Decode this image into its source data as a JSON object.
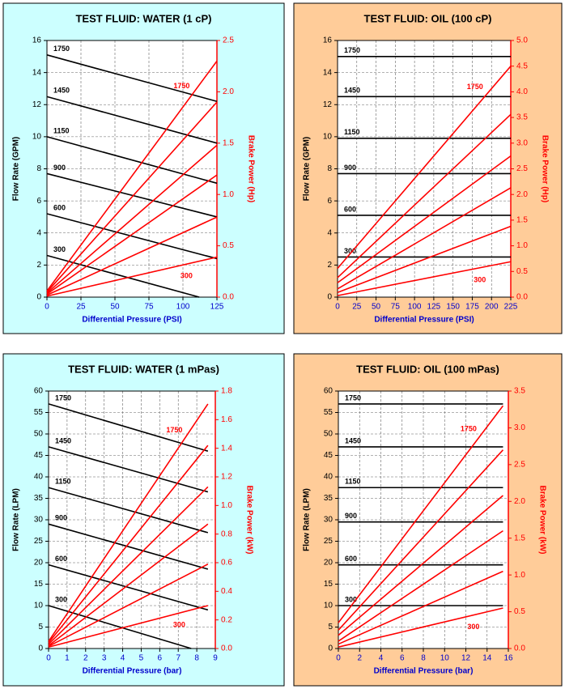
{
  "chart_data": [
    {
      "type": "line",
      "title": "TEST FLUID:  WATER (1 cP)",
      "background": "#ccffff",
      "xlabel": "Differential Pressure (PSI)",
      "ylabel": "Flow Rate (GPM)",
      "y2label": "Brake Power (Hp)",
      "xlim": [
        0,
        125
      ],
      "xticks": [
        0,
        25,
        50,
        75,
        100,
        125
      ],
      "ylim": [
        0,
        16
      ],
      "yticks": [
        0,
        2,
        4,
        6,
        8,
        10,
        12,
        14,
        16
      ],
      "y2lim": [
        0,
        2.5
      ],
      "y2ticks": [
        {
          "value": 0,
          "label": "0.0"
        },
        0.5,
        {
          "value": 1,
          "label": "1.0"
        },
        1.5,
        {
          "value": 2,
          "label": "2.0"
        },
        2.5
      ],
      "grid": true,
      "series": [
        {
          "name": "1750",
          "color": "#000000",
          "x": [
            0,
            125
          ],
          "values": [
            15.1,
            12.2
          ]
        },
        {
          "name": "1450",
          "color": "#000000",
          "x": [
            0,
            125
          ],
          "values": [
            12.5,
            9.6
          ]
        },
        {
          "name": "1150",
          "color": "#000000",
          "x": [
            0,
            125
          ],
          "values": [
            10.0,
            7.1
          ]
        },
        {
          "name": "900",
          "color": "#000000",
          "x": [
            0,
            125
          ],
          "values": [
            7.7,
            5.0
          ]
        },
        {
          "name": "600",
          "color": "#000000",
          "x": [
            0,
            125
          ],
          "values": [
            5.2,
            2.4
          ]
        },
        {
          "name": "300",
          "color": "#000000",
          "x": [
            0,
            112
          ],
          "values": [
            2.6,
            0
          ]
        },
        {
          "name": "1750",
          "color": "#ff0000",
          "axis": "y2",
          "x": [
            0,
            125
          ],
          "values": [
            0.06,
            2.3
          ]
        },
        {
          "color": "#ff0000",
          "axis": "y2",
          "x": [
            0,
            125
          ],
          "values": [
            0.05,
            1.9
          ]
        },
        {
          "color": "#ff0000",
          "axis": "y2",
          "x": [
            0,
            125
          ],
          "values": [
            0.04,
            1.48
          ]
        },
        {
          "color": "#ff0000",
          "axis": "y2",
          "x": [
            0,
            125
          ],
          "values": [
            0.03,
            1.19
          ]
        },
        {
          "color": "#ff0000",
          "axis": "y2",
          "x": [
            0,
            125
          ],
          "values": [
            0.02,
            0.78
          ]
        },
        {
          "name": "300",
          "color": "#ff0000",
          "axis": "y2",
          "x": [
            0,
            125
          ],
          "values": [
            0.01,
            0.39
          ]
        }
      ]
    },
    {
      "type": "line",
      "title": "TEST FLUID:  OIL (100 cP)",
      "background": "#ffcc99",
      "xlabel": "Differential Pressure (PSI)",
      "ylabel": "Flow Rate (GPM)",
      "y2label": "Brake Power (Hp)",
      "xlim": [
        0,
        225
      ],
      "xticks": [
        0,
        25,
        50,
        75,
        100,
        125,
        150,
        175,
        200,
        225
      ],
      "ylim": [
        0,
        16
      ],
      "yticks": [
        0,
        2,
        4,
        6,
        8,
        10,
        12,
        14,
        16
      ],
      "y2lim": [
        0,
        5
      ],
      "y2ticks": [
        {
          "value": 0,
          "label": "0.0"
        },
        0.5,
        {
          "value": 1,
          "label": "1.0"
        },
        1.5,
        {
          "value": 2,
          "label": "2.0"
        },
        2.5,
        {
          "value": 3,
          "label": "3.0"
        },
        3.5,
        {
          "value": 4,
          "label": "4.0"
        },
        4.5,
        {
          "value": 5,
          "label": "5.0"
        }
      ],
      "grid": true,
      "series": [
        {
          "name": "1750",
          "color": "#000000",
          "x": [
            0,
            225
          ],
          "values": [
            15.0,
            15.0
          ]
        },
        {
          "name": "1450",
          "color": "#000000",
          "x": [
            0,
            225
          ],
          "values": [
            12.5,
            12.5
          ]
        },
        {
          "name": "1150",
          "color": "#000000",
          "x": [
            0,
            225
          ],
          "values": [
            9.9,
            9.9
          ]
        },
        {
          "name": "900",
          "color": "#000000",
          "x": [
            0,
            225
          ],
          "values": [
            7.7,
            7.7
          ]
        },
        {
          "name": "600",
          "color": "#000000",
          "x": [
            0,
            225
          ],
          "values": [
            5.1,
            5.1
          ]
        },
        {
          "name": "300",
          "color": "#000000",
          "x": [
            0,
            225
          ],
          "values": [
            2.5,
            2.5
          ]
        },
        {
          "name": "1750",
          "color": "#ff0000",
          "axis": "y2",
          "x": [
            0,
            225
          ],
          "values": [
            0.56,
            4.5
          ]
        },
        {
          "color": "#ff0000",
          "axis": "y2",
          "x": [
            0,
            225
          ],
          "values": [
            0.38,
            3.56
          ]
        },
        {
          "color": "#ff0000",
          "axis": "y2",
          "x": [
            0,
            225
          ],
          "values": [
            0.28,
            2.75
          ]
        },
        {
          "color": "#ff0000",
          "axis": "y2",
          "x": [
            0,
            225
          ],
          "values": [
            0.16,
            2.13
          ]
        },
        {
          "color": "#ff0000",
          "axis": "y2",
          "x": [
            0,
            225
          ],
          "values": [
            0.09,
            1.38
          ]
        },
        {
          "name": "300",
          "color": "#ff0000",
          "axis": "y2",
          "x": [
            0,
            225
          ],
          "values": [
            0.03,
            0.69
          ]
        }
      ]
    },
    {
      "type": "line",
      "title": "TEST FLUID:  WATER (1 mPas)",
      "background": "#ccffff",
      "xlabel": "Differential Pressure (bar)",
      "ylabel": "Flow Rate (LPM)",
      "y2label": "Brake Power (kW)",
      "xlim": [
        0,
        9
      ],
      "xticks": [
        0,
        1,
        2,
        3,
        4,
        5,
        6,
        7,
        8,
        9
      ],
      "ylim": [
        0,
        60
      ],
      "yticks": [
        0,
        5,
        10,
        15,
        20,
        25,
        30,
        35,
        40,
        45,
        50,
        55,
        60
      ],
      "y2lim": [
        0,
        1.8
      ],
      "y2ticks": [
        {
          "value": 0,
          "label": "0.0"
        },
        0.2,
        0.4,
        0.6,
        0.8,
        {
          "value": 1,
          "label": "1.0"
        },
        1.2,
        1.4,
        1.6,
        1.8
      ],
      "grid": true,
      "series": [
        {
          "name": "1750",
          "color": "#000000",
          "x": [
            0,
            8.6
          ],
          "values": [
            57,
            46
          ]
        },
        {
          "name": "1450",
          "color": "#000000",
          "x": [
            0,
            8.6
          ],
          "values": [
            47,
            36.5
          ]
        },
        {
          "name": "1150",
          "color": "#000000",
          "x": [
            0,
            8.6
          ],
          "values": [
            37.5,
            27
          ]
        },
        {
          "name": "900",
          "color": "#000000",
          "x": [
            0,
            8.6
          ],
          "values": [
            29,
            18.5
          ]
        },
        {
          "name": "600",
          "color": "#000000",
          "x": [
            0,
            8.6
          ],
          "values": [
            19.5,
            9
          ]
        },
        {
          "name": "300",
          "color": "#000000",
          "x": [
            0,
            7.7
          ],
          "values": [
            10,
            0
          ]
        },
        {
          "name": "1750",
          "color": "#ff0000",
          "axis": "y2",
          "x": [
            0,
            8.6
          ],
          "values": [
            0.05,
            1.71
          ]
        },
        {
          "color": "#ff0000",
          "axis": "y2",
          "x": [
            0,
            8.6
          ],
          "values": [
            0.04,
            1.42
          ]
        },
        {
          "color": "#ff0000",
          "axis": "y2",
          "x": [
            0,
            8.6
          ],
          "values": [
            0.03,
            1.13
          ]
        },
        {
          "color": "#ff0000",
          "axis": "y2",
          "x": [
            0,
            8.6
          ],
          "values": [
            0.02,
            0.87
          ]
        },
        {
          "color": "#ff0000",
          "axis": "y2",
          "x": [
            0,
            8.6
          ],
          "values": [
            0.015,
            0.59
          ]
        },
        {
          "name": "300",
          "color": "#ff0000",
          "axis": "y2",
          "x": [
            0,
            8.6
          ],
          "values": [
            0.01,
            0.3
          ]
        }
      ]
    },
    {
      "type": "line",
      "title": "TEST FLUID:  OIL (100 mPas)",
      "background": "#ffcc99",
      "xlabel": "Differential Pressure (bar)",
      "ylabel": "Flow Rate (LPM)",
      "y2label": "Brake Power (kW)",
      "xlim": [
        0,
        16
      ],
      "xticks": [
        0,
        2,
        4,
        6,
        8,
        10,
        12,
        14,
        16
      ],
      "ylim": [
        0,
        60
      ],
      "yticks": [
        0,
        5,
        10,
        15,
        20,
        25,
        30,
        35,
        40,
        45,
        50,
        55,
        60
      ],
      "y2lim": [
        0,
        3.5
      ],
      "y2ticks": [
        {
          "value": 0,
          "label": "0.0"
        },
        0.5,
        {
          "value": 1,
          "label": "1.0"
        },
        1.5,
        {
          "value": 2,
          "label": "2.0"
        },
        2.5,
        {
          "value": 3,
          "label": "3.0"
        },
        3.5
      ],
      "grid": true,
      "series": [
        {
          "name": "1750",
          "color": "#000000",
          "x": [
            0,
            15.5
          ],
          "values": [
            57,
            57
          ]
        },
        {
          "name": "1450",
          "color": "#000000",
          "x": [
            0,
            15.5
          ],
          "values": [
            47,
            47
          ]
        },
        {
          "name": "1150",
          "color": "#000000",
          "x": [
            0,
            15.5
          ],
          "values": [
            37.5,
            37.5
          ]
        },
        {
          "name": "900",
          "color": "#000000",
          "x": [
            0,
            15.5
          ],
          "values": [
            29.5,
            29.5
          ]
        },
        {
          "name": "600",
          "color": "#000000",
          "x": [
            0,
            15.5
          ],
          "values": [
            19.5,
            19.5
          ]
        },
        {
          "name": "300",
          "color": "#000000",
          "x": [
            0,
            15.5
          ],
          "values": [
            10,
            10
          ]
        },
        {
          "name": "1750",
          "color": "#ff0000",
          "axis": "y2",
          "x": [
            0,
            15.5
          ],
          "values": [
            0.35,
            3.3
          ]
        },
        {
          "color": "#ff0000",
          "axis": "y2",
          "x": [
            0,
            15.5
          ],
          "values": [
            0.25,
            2.7
          ]
        },
        {
          "color": "#ff0000",
          "axis": "y2",
          "x": [
            0,
            15.5
          ],
          "values": [
            0.18,
            2.08
          ]
        },
        {
          "color": "#ff0000",
          "axis": "y2",
          "x": [
            0,
            15.5
          ],
          "values": [
            0.1,
            1.6
          ]
        },
        {
          "color": "#ff0000",
          "axis": "y2",
          "x": [
            0,
            15.5
          ],
          "values": [
            0.06,
            1.05
          ]
        },
        {
          "name": "300",
          "color": "#ff0000",
          "axis": "y2",
          "x": [
            0,
            15.5
          ],
          "values": [
            0.02,
            0.55
          ]
        }
      ]
    }
  ]
}
